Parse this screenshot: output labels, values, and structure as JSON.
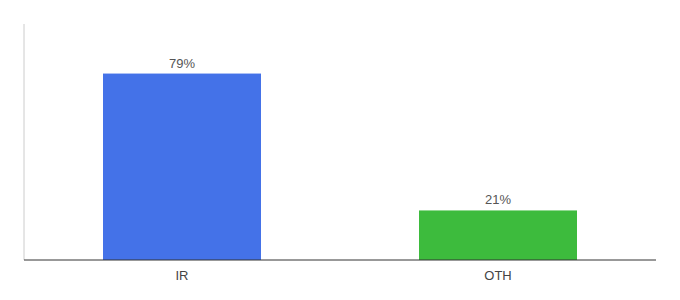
{
  "chart_data": {
    "type": "bar",
    "categories": [
      "IR",
      "OTH"
    ],
    "values": [
      79,
      21
    ],
    "value_labels": [
      "79%",
      "21%"
    ],
    "colors": [
      "#4472e8",
      "#3dbb3d"
    ],
    "ylim": [
      0,
      100
    ],
    "data_labels": true,
    "tick_labels": "x",
    "grid": false
  }
}
